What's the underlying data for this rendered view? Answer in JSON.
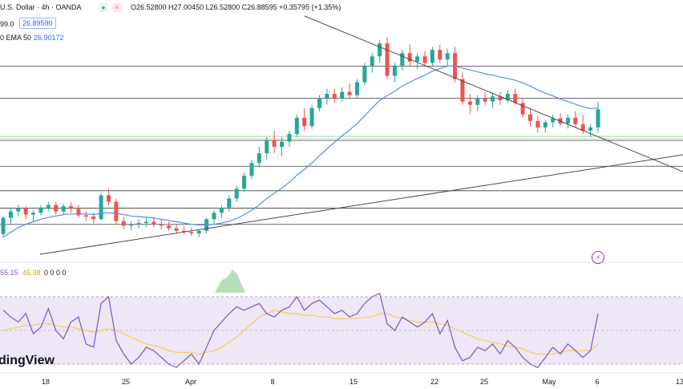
{
  "header": {
    "symbol": "U.S. Dollar · 4h · OANDA",
    "ohlc": "O26.52800 H27.00450 L26.52800 C26.88595 +0.35795 (+1.35%)",
    "indicator_prefix": "99.0",
    "price_badge": "26.89590",
    "ema_label": "0 EMA 50",
    "ema_value": "26.90172"
  },
  "rsi": {
    "v1": "55.15",
    "v2": "45.38",
    "zeros": "0 0 0 0"
  },
  "watermark": "dingView",
  "colors": {
    "bull": "#26a69a",
    "bear": "#ef5350",
    "ema": "#5b8def",
    "rsi": "#7e57c2",
    "rsi_ma": "#f7d04c",
    "trendline": "#4a4a4a"
  },
  "chart_data": {
    "type": "candlestick",
    "title": "U.S. Dollar · 4h · OANDA",
    "x_ticks": [
      "18",
      "25",
      "Apr",
      "8",
      "15",
      "22",
      "25",
      "29",
      "May",
      "6",
      "13"
    ],
    "price_levels": [
      27.55,
      27.05,
      26.4,
      26.0,
      25.62,
      25.35,
      25.1
    ],
    "candles": [
      [
        24.95,
        25.22,
        24.9,
        25.2
      ],
      [
        25.2,
        25.35,
        25.1,
        25.3
      ],
      [
        25.3,
        25.4,
        25.22,
        25.35
      ],
      [
        25.35,
        25.38,
        25.18,
        25.25
      ],
      [
        25.25,
        25.32,
        25.15,
        25.28
      ],
      [
        25.28,
        25.4,
        25.24,
        25.36
      ],
      [
        25.36,
        25.45,
        25.3,
        25.4
      ],
      [
        25.4,
        25.45,
        25.25,
        25.3
      ],
      [
        25.3,
        25.42,
        25.26,
        25.38
      ],
      [
        25.38,
        25.44,
        25.28,
        25.34
      ],
      [
        25.34,
        25.4,
        25.2,
        25.24
      ],
      [
        25.24,
        25.3,
        25.15,
        25.22
      ],
      [
        25.22,
        25.28,
        25.12,
        25.18
      ],
      [
        25.18,
        25.58,
        25.16,
        25.55
      ],
      [
        25.55,
        25.65,
        25.4,
        25.45
      ],
      [
        25.45,
        25.5,
        25.1,
        25.15
      ],
      [
        25.15,
        25.22,
        25.02,
        25.08
      ],
      [
        25.08,
        25.15,
        25.0,
        25.1
      ],
      [
        25.1,
        25.18,
        25.04,
        25.12
      ],
      [
        25.12,
        25.2,
        25.06,
        25.14
      ],
      [
        25.14,
        25.22,
        25.06,
        25.1
      ],
      [
        25.1,
        25.18,
        25.02,
        25.08
      ],
      [
        25.08,
        25.14,
        25.0,
        25.04
      ],
      [
        25.04,
        25.1,
        24.96,
        25.0
      ],
      [
        25.0,
        25.08,
        24.94,
        24.98
      ],
      [
        24.98,
        25.05,
        24.92,
        24.96
      ],
      [
        24.96,
        25.02,
        24.9,
        25.0
      ],
      [
        25.0,
        25.2,
        24.96,
        25.18
      ],
      [
        25.18,
        25.32,
        25.1,
        25.28
      ],
      [
        25.28,
        25.4,
        25.2,
        25.36
      ],
      [
        25.36,
        25.55,
        25.3,
        25.5
      ],
      [
        25.5,
        25.7,
        25.45,
        25.65
      ],
      [
        25.65,
        25.9,
        25.6,
        25.85
      ],
      [
        25.85,
        26.1,
        25.8,
        26.05
      ],
      [
        26.05,
        26.3,
        25.98,
        26.2
      ],
      [
        26.2,
        26.45,
        26.1,
        26.4
      ],
      [
        26.4,
        26.55,
        26.2,
        26.3
      ],
      [
        26.3,
        26.45,
        26.15,
        26.38
      ],
      [
        26.38,
        26.55,
        26.3,
        26.5
      ],
      [
        26.5,
        26.8,
        26.45,
        26.75
      ],
      [
        26.75,
        26.9,
        26.55,
        26.62
      ],
      [
        26.62,
        26.95,
        26.58,
        26.9
      ],
      [
        26.9,
        27.1,
        26.85,
        27.05
      ],
      [
        27.05,
        27.2,
        26.95,
        27.12
      ],
      [
        27.12,
        27.2,
        26.98,
        27.05
      ],
      [
        27.05,
        27.22,
        27.0,
        27.15
      ],
      [
        27.15,
        27.28,
        27.05,
        27.1
      ],
      [
        27.1,
        27.35,
        27.05,
        27.3
      ],
      [
        27.3,
        27.6,
        27.25,
        27.55
      ],
      [
        27.55,
        27.75,
        27.45,
        27.7
      ],
      [
        27.7,
        27.95,
        27.6,
        27.9
      ],
      [
        27.9,
        28.0,
        27.35,
        27.4
      ],
      [
        27.4,
        27.6,
        27.3,
        27.55
      ],
      [
        27.55,
        27.8,
        27.48,
        27.75
      ],
      [
        27.75,
        27.88,
        27.55,
        27.62
      ],
      [
        27.62,
        27.75,
        27.5,
        27.7
      ],
      [
        27.7,
        27.78,
        27.55,
        27.6
      ],
      [
        27.6,
        27.85,
        27.55,
        27.8
      ],
      [
        27.8,
        27.88,
        27.6,
        27.65
      ],
      [
        27.65,
        27.82,
        27.55,
        27.75
      ],
      [
        27.75,
        27.85,
        27.3,
        27.35
      ],
      [
        27.35,
        27.45,
        26.95,
        27.0
      ],
      [
        27.0,
        27.12,
        26.8,
        26.95
      ],
      [
        26.95,
        27.1,
        26.85,
        27.05
      ],
      [
        27.05,
        27.15,
        26.95,
        27.0
      ],
      [
        27.0,
        27.12,
        26.9,
        27.08
      ],
      [
        27.08,
        27.15,
        26.95,
        27.02
      ],
      [
        27.02,
        27.18,
        26.98,
        27.12
      ],
      [
        27.12,
        27.2,
        26.95,
        26.98
      ],
      [
        26.98,
        27.05,
        26.75,
        26.8
      ],
      [
        26.8,
        26.9,
        26.62,
        26.7
      ],
      [
        26.7,
        26.78,
        26.52,
        26.6
      ],
      [
        26.6,
        26.72,
        26.52,
        26.68
      ],
      [
        26.68,
        26.8,
        26.6,
        26.74
      ],
      [
        26.74,
        26.82,
        26.62,
        26.66
      ],
      [
        26.66,
        26.8,
        26.58,
        26.75
      ],
      [
        26.75,
        26.85,
        26.6,
        26.65
      ],
      [
        26.65,
        26.8,
        26.5,
        26.55
      ],
      [
        26.55,
        26.65,
        26.45,
        26.6
      ],
      [
        26.6,
        27.0,
        26.52,
        26.88
      ]
    ],
    "ema50": [
      24.9,
      24.98,
      25.05,
      25.1,
      25.14,
      25.18,
      25.21,
      25.23,
      25.25,
      25.26,
      25.26,
      25.26,
      25.25,
      25.27,
      25.28,
      25.27,
      25.25,
      25.23,
      25.22,
      25.21,
      25.2,
      25.18,
      25.16,
      25.14,
      25.12,
      25.1,
      25.09,
      25.09,
      25.1,
      25.12,
      25.15,
      25.19,
      25.25,
      25.32,
      25.4,
      25.5,
      25.58,
      25.66,
      25.75,
      25.86,
      25.95,
      26.05,
      26.16,
      26.27,
      26.37,
      26.47,
      26.56,
      26.66,
      26.78,
      26.9,
      27.02,
      27.09,
      27.16,
      27.24,
      27.3,
      27.36,
      27.41,
      27.47,
      27.51,
      27.55,
      27.55,
      27.52,
      27.49,
      27.46,
      27.43,
      27.41,
      27.38,
      27.36,
      27.33,
      27.29,
      27.24,
      27.18,
      27.13,
      27.09,
      27.04,
      27.0,
      26.96,
      26.92,
      26.89,
      26.9
    ],
    "rsi": [
      62,
      58,
      55,
      60,
      48,
      52,
      63,
      50,
      45,
      55,
      58,
      42,
      40,
      66,
      70,
      44,
      36,
      30,
      34,
      40,
      38,
      34,
      30,
      28,
      32,
      36,
      30,
      40,
      50,
      55,
      60,
      64,
      62,
      64,
      66,
      60,
      58,
      62,
      64,
      70,
      62,
      66,
      68,
      64,
      60,
      62,
      58,
      60,
      66,
      70,
      72,
      54,
      50,
      58,
      55,
      52,
      55,
      60,
      48,
      56,
      40,
      32,
      34,
      40,
      38,
      42,
      36,
      44,
      40,
      34,
      30,
      28,
      34,
      40,
      36,
      42,
      38,
      34,
      38,
      60
    ],
    "rsi_ma": [
      50,
      51,
      52,
      53,
      53,
      54,
      54,
      53,
      52,
      52,
      51,
      50,
      49,
      50,
      51,
      50,
      48,
      46,
      44,
      42,
      41,
      40,
      38,
      37,
      37,
      37,
      36,
      37,
      38,
      40,
      43,
      46,
      50,
      54,
      58,
      60,
      62,
      61,
      60,
      60,
      59,
      59,
      58,
      58,
      57,
      57,
      57,
      57,
      58,
      58,
      60,
      60,
      58,
      57,
      56,
      55,
      55,
      55,
      54,
      53,
      51,
      49,
      47,
      45,
      44,
      43,
      42,
      41,
      40,
      39,
      37,
      36,
      36,
      36,
      37,
      38,
      38,
      38,
      38,
      42
    ]
  }
}
